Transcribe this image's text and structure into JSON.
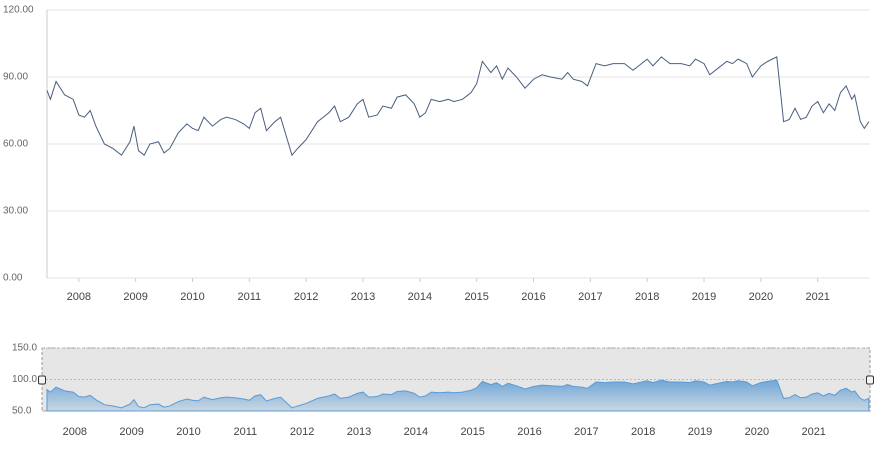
{
  "chart_data": {
    "type": "line",
    "x": [
      2007.44,
      2007.5,
      2007.6,
      2007.75,
      2007.9,
      2008.0,
      2008.1,
      2008.2,
      2008.3,
      2008.45,
      2008.6,
      2008.75,
      2008.9,
      2008.97,
      2009.05,
      2009.15,
      2009.25,
      2009.4,
      2009.5,
      2009.6,
      2009.75,
      2009.9,
      2010.0,
      2010.1,
      2010.2,
      2010.35,
      2010.5,
      2010.6,
      2010.75,
      2010.9,
      2011.0,
      2011.1,
      2011.2,
      2011.3,
      2011.45,
      2011.55,
      2011.75,
      2011.85,
      2012.0,
      2012.2,
      2012.4,
      2012.5,
      2012.6,
      2012.75,
      2012.9,
      2013.0,
      2013.1,
      2013.25,
      2013.35,
      2013.5,
      2013.6,
      2013.75,
      2013.9,
      2014.0,
      2014.1,
      2014.2,
      2014.35,
      2014.5,
      2014.6,
      2014.75,
      2014.9,
      2015.0,
      2015.1,
      2015.25,
      2015.35,
      2015.45,
      2015.55,
      2015.7,
      2015.85,
      2016.0,
      2016.15,
      2016.3,
      2016.5,
      2016.6,
      2016.7,
      2016.85,
      2016.95,
      2017.1,
      2017.25,
      2017.4,
      2017.6,
      2017.75,
      2017.9,
      2018.0,
      2018.1,
      2018.25,
      2018.4,
      2018.6,
      2018.75,
      2018.85,
      2019.0,
      2019.1,
      2019.25,
      2019.4,
      2019.5,
      2019.6,
      2019.75,
      2019.85,
      2020.0,
      2020.12,
      2020.2,
      2020.28,
      2020.4,
      2020.5,
      2020.6,
      2020.7,
      2020.8,
      2020.9,
      2021.0,
      2021.1,
      2021.2,
      2021.3,
      2021.4,
      2021.5,
      2021.6,
      2021.65,
      2021.75,
      2021.82,
      2021.9
    ],
    "values": [
      84,
      80,
      88,
      82,
      80,
      73,
      72,
      75,
      68,
      60,
      58,
      55,
      61,
      68,
      57,
      55,
      60,
      61,
      56,
      58,
      65,
      69,
      67,
      66,
      72,
      68,
      71,
      72,
      71,
      69,
      67,
      74,
      76,
      66,
      70,
      72,
      55,
      58,
      62,
      70,
      74,
      77,
      70,
      72,
      78,
      80,
      72,
      73,
      77,
      76,
      81,
      82,
      78,
      72,
      74,
      80,
      79,
      80,
      79,
      80,
      83,
      87,
      97,
      92,
      95,
      89,
      94,
      90,
      85,
      89,
      91,
      90,
      89,
      92,
      89,
      88,
      86,
      96,
      95,
      96,
      96,
      93,
      96,
      98,
      95,
      99,
      96,
      96,
      95,
      98,
      96,
      91,
      94,
      97,
      96,
      98,
      96,
      90,
      95,
      97,
      98,
      99,
      70,
      71,
      76,
      71,
      72,
      77,
      79,
      74,
      78,
      75,
      83,
      86,
      80,
      82,
      70,
      67,
      70
    ],
    "color": "#4a5f7e",
    "xlim": [
      2007.44,
      2021.92
    ],
    "xticks": [
      2008,
      2009,
      2010,
      2011,
      2012,
      2013,
      2014,
      2015,
      2016,
      2017,
      2018,
      2019,
      2020,
      2021
    ],
    "ylim": [
      0,
      120
    ],
    "yticks": [
      {
        "value": 0,
        "label": "0.00"
      },
      {
        "value": 30,
        "label": "30.00"
      },
      {
        "value": 60,
        "label": "60.00"
      },
      {
        "value": 90,
        "label": "90.00"
      },
      {
        "value": 120,
        "label": "120.00"
      }
    ],
    "grid": true,
    "navigator": {
      "color": "#5b9bd5",
      "ylim": [
        50,
        150
      ],
      "yticks": [
        {
          "value": 50,
          "label": "50.0"
        },
        {
          "value": 100,
          "label": "100.0"
        },
        {
          "value": 150,
          "label": "150.0"
        }
      ]
    }
  }
}
